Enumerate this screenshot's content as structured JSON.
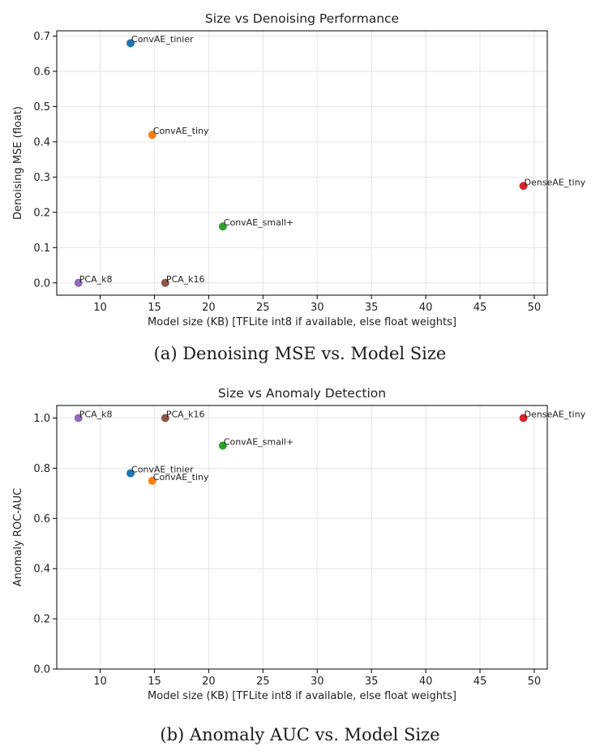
{
  "figure": {
    "caption_a": "(a) Denoising MSE vs. Model Size",
    "caption_b": "(b) Anomaly AUC vs. Model Size"
  },
  "chart_data": [
    {
      "type": "scatter",
      "title": "Size vs Denoising Performance",
      "xlabel": "Model size (KB) [TFLite int8 if available, else float weights]",
      "ylabel": "Denoising MSE (float)",
      "xlim": [
        6,
        51.2
      ],
      "ylim": [
        -0.035,
        0.715
      ],
      "xticks": [
        10,
        15,
        20,
        25,
        30,
        35,
        40,
        45,
        50
      ],
      "yticks": [
        0.0,
        0.1,
        0.2,
        0.3,
        0.4,
        0.5,
        0.6,
        0.7
      ],
      "ytick_labels": [
        "0.0",
        "0.1",
        "0.2",
        "0.3",
        "0.4",
        "0.5",
        "0.6",
        "0.7"
      ],
      "grid": true,
      "points": [
        {
          "label": "ConvAE_tinier",
          "x": 12.8,
          "y": 0.68,
          "color": "#1f77b4"
        },
        {
          "label": "ConvAE_tiny",
          "x": 14.8,
          "y": 0.42,
          "color": "#ff7f0e"
        },
        {
          "label": "DenseAE_tiny",
          "x": 49.0,
          "y": 0.275,
          "color": "#d62728"
        },
        {
          "label": "ConvAE_small+",
          "x": 21.3,
          "y": 0.16,
          "color": "#2ca02c"
        },
        {
          "label": "PCA_k8",
          "x": 8.0,
          "y": 0.0,
          "color": "#9467bd"
        },
        {
          "label": "PCA_k16",
          "x": 16.0,
          "y": 0.0,
          "color": "#8c564b"
        }
      ]
    },
    {
      "type": "scatter",
      "title": "Size vs Anomaly Detection",
      "xlabel": "Model size (KB) [TFLite int8 if available, else float weights]",
      "ylabel": "Anomaly ROC-AUC",
      "xlim": [
        6,
        51.2
      ],
      "ylim": [
        0.0,
        1.05
      ],
      "xticks": [
        10,
        15,
        20,
        25,
        30,
        35,
        40,
        45,
        50
      ],
      "yticks": [
        0.0,
        0.2,
        0.4,
        0.6,
        0.8,
        1.0
      ],
      "ytick_labels": [
        "0.0",
        "0.2",
        "0.4",
        "0.6",
        "0.8",
        "1.0"
      ],
      "grid": true,
      "points": [
        {
          "label": "PCA_k8",
          "x": 8.0,
          "y": 1.0,
          "color": "#9467bd"
        },
        {
          "label": "PCA_k16",
          "x": 16.0,
          "y": 1.0,
          "color": "#8c564b"
        },
        {
          "label": "DenseAE_tiny",
          "x": 49.0,
          "y": 1.0,
          "color": "#d62728"
        },
        {
          "label": "ConvAE_small+",
          "x": 21.3,
          "y": 0.89,
          "color": "#2ca02c"
        },
        {
          "label": "ConvAE_tinier",
          "x": 12.8,
          "y": 0.78,
          "color": "#1f77b4"
        },
        {
          "label": "ConvAE_tiny",
          "x": 14.8,
          "y": 0.75,
          "color": "#ff7f0e"
        }
      ]
    }
  ]
}
